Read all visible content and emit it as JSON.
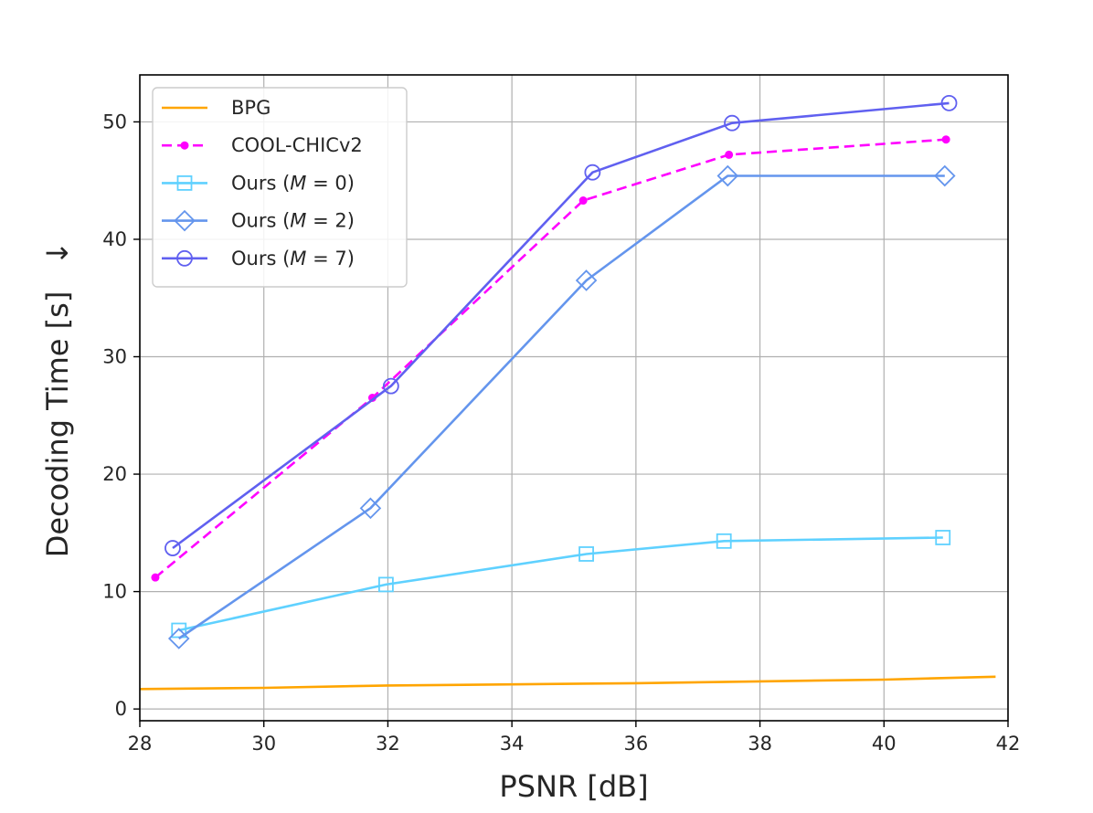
{
  "chart_data": {
    "type": "line",
    "title": "",
    "xlabel": "PSNR [dB]",
    "ylabel": "Decoding Time [s]",
    "ylabel_arrow": "↓",
    "xlim": [
      28,
      42
    ],
    "ylim": [
      -1,
      54
    ],
    "xticks": [
      28,
      30,
      32,
      34,
      36,
      38,
      40,
      42
    ],
    "yticks": [
      0,
      10,
      20,
      30,
      40,
      50
    ],
    "grid": true,
    "legend_position": "top-left",
    "series": [
      {
        "name": "BPG",
        "color": "#ffa500",
        "marker": "none",
        "dashed": false,
        "legend_parts": [
          "BPG"
        ],
        "x": [
          28.0,
          30.0,
          32.0,
          34.0,
          36.0,
          38.0,
          40.0,
          41.8
        ],
        "y": [
          1.7,
          1.8,
          2.0,
          2.1,
          2.2,
          2.35,
          2.5,
          2.75
        ]
      },
      {
        "name": "COOL-CHICv2",
        "color": "#ff00ff",
        "marker": "dot",
        "dashed": true,
        "legend_parts": [
          "COOL-CHICv2"
        ],
        "x": [
          28.25,
          31.75,
          35.15,
          37.5,
          41.0
        ],
        "y": [
          11.2,
          26.5,
          43.3,
          47.2,
          48.5
        ]
      },
      {
        "name": "Ours (M = 0)",
        "color": "#5fd1ff",
        "marker": "square",
        "dashed": false,
        "legend_parts": [
          "Ours (",
          "M",
          " = 0)"
        ],
        "x": [
          28.63,
          31.97,
          35.2,
          37.42,
          40.95
        ],
        "y": [
          6.7,
          10.6,
          13.2,
          14.3,
          14.6
        ]
      },
      {
        "name": "Ours (M = 2)",
        "color": "#6495ed",
        "marker": "diamond",
        "dashed": false,
        "legend_parts": [
          "Ours (",
          "M",
          " = 2)"
        ],
        "x": [
          28.63,
          31.72,
          35.2,
          37.48,
          40.98
        ],
        "y": [
          6.0,
          17.1,
          36.5,
          45.4,
          45.4
        ]
      },
      {
        "name": "Ours (M = 7)",
        "color": "#6060f0",
        "marker": "circle",
        "dashed": false,
        "legend_parts": [
          "Ours (",
          "M",
          " = 7)"
        ],
        "x": [
          28.53,
          32.05,
          35.3,
          37.55,
          41.05
        ],
        "y": [
          13.7,
          27.5,
          45.7,
          49.9,
          51.6
        ]
      }
    ]
  }
}
